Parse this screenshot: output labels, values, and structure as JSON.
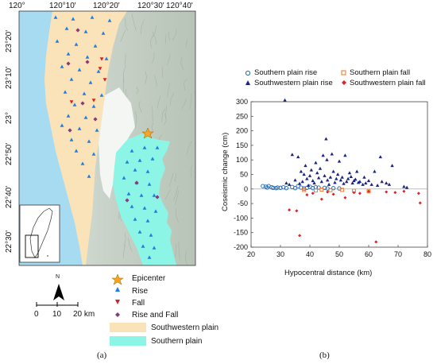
{
  "panel_a": {
    "label": "(a)",
    "top_ticks": [
      "120°",
      "120°10'",
      "120°20'",
      "120°30'",
      "120°40'"
    ],
    "left_ticks": [
      "23°20'",
      "23°10'",
      "23°",
      "22°50'",
      "22°40'",
      "22°30'"
    ],
    "north_label": "N",
    "scale_labels": [
      "0",
      "10",
      "20 km"
    ],
    "legend": [
      {
        "label": "Epicenter",
        "symbol": "star",
        "color": "#f5a623"
      },
      {
        "label": "Rise",
        "symbol": "triangle-up",
        "color": "#1e7fe0"
      },
      {
        "label": "Fall",
        "symbol": "triangle-down",
        "color": "#d42020"
      },
      {
        "label": "Rise and Fall",
        "symbol": "diamond",
        "color": "#8a3a7a"
      },
      {
        "label": "Southwestern plain",
        "symbol": "patch",
        "color": "#fae3b8"
      },
      {
        "label": "Southern plain",
        "symbol": "patch",
        "color": "#8cf5e6"
      }
    ],
    "colors": {
      "sea": "#a7dbf2",
      "southwestern_plain": "#fae3b8",
      "southern_plain": "#8cf5e6",
      "mountain": "#cfd8cf"
    }
  },
  "panel_b": {
    "label": "(b)",
    "legend": [
      {
        "label": "Southern plain rise",
        "color": "#2266aa",
        "symbol": "open-circle"
      },
      {
        "label": "Southern plain fall",
        "color": "#f07020",
        "symbol": "open-square"
      },
      {
        "label": "Southwestern plain rise",
        "color": "#1a237e",
        "symbol": "triangle"
      },
      {
        "label": "Southwestern plain fall",
        "color": "#dd2222",
        "symbol": "diamond"
      }
    ]
  },
  "chart_data": {
    "type": "scatter",
    "xlabel": "Hypocentral distance (km)",
    "ylabel": "Coseismic change (cm)",
    "xlim": [
      20,
      80
    ],
    "ylim": [
      -200,
      300
    ],
    "xticks": [
      20,
      30,
      40,
      50,
      60,
      70,
      80
    ],
    "yticks": [
      -200,
      -150,
      -100,
      -50,
      0,
      50,
      100,
      150,
      200,
      250,
      300
    ],
    "grid": false,
    "legend_position": "top",
    "series": [
      {
        "name": "Southern plain rise",
        "color": "#2266aa",
        "marker": "open-circle",
        "points": [
          [
            24,
            10
          ],
          [
            25,
            8
          ],
          [
            25.5,
            5
          ],
          [
            26,
            10
          ],
          [
            27,
            6
          ],
          [
            27.5,
            4
          ],
          [
            28.5,
            3
          ],
          [
            29,
            5
          ],
          [
            30,
            4
          ],
          [
            31,
            6
          ],
          [
            32,
            3
          ],
          [
            34,
            7
          ],
          [
            35,
            3
          ],
          [
            36,
            10
          ],
          [
            37,
            5
          ],
          [
            38,
            2
          ],
          [
            39,
            4
          ],
          [
            40,
            8
          ],
          [
            41,
            3
          ],
          [
            42,
            6
          ],
          [
            43,
            5
          ],
          [
            45,
            4
          ],
          [
            46,
            2
          ],
          [
            48,
            3
          ],
          [
            50,
            2
          ]
        ]
      },
      {
        "name": "Southern plain fall",
        "color": "#f07020",
        "marker": "open-square",
        "points": [
          [
            38,
            -3
          ],
          [
            42,
            -5
          ],
          [
            44,
            -2
          ],
          [
            47,
            -4
          ],
          [
            51,
            -3
          ],
          [
            55,
            -6
          ],
          [
            60,
            -8
          ]
        ]
      },
      {
        "name": "Southwestern plain rise",
        "color": "#1a237e",
        "marker": "triangle",
        "points": [
          [
            31.5,
            305
          ],
          [
            32,
            20
          ],
          [
            33,
            15
          ],
          [
            34,
            118
          ],
          [
            35,
            30
          ],
          [
            36,
            110
          ],
          [
            36.5,
            18
          ],
          [
            37,
            60
          ],
          [
            37.5,
            25
          ],
          [
            38,
            50
          ],
          [
            38.5,
            80
          ],
          [
            39,
            35
          ],
          [
            39.5,
            12
          ],
          [
            40,
            45
          ],
          [
            40.5,
            65
          ],
          [
            41,
            28
          ],
          [
            41.5,
            20
          ],
          [
            42,
            90
          ],
          [
            42.5,
            55
          ],
          [
            43,
            38
          ],
          [
            43.5,
            70
          ],
          [
            44,
            25
          ],
          [
            44.5,
            115
          ],
          [
            45,
            45
          ],
          [
            45.5,
            172
          ],
          [
            45.8,
            100
          ],
          [
            46,
            30
          ],
          [
            46.5,
            15
          ],
          [
            47,
            40
          ],
          [
            47.5,
            120
          ],
          [
            48,
            60
          ],
          [
            48.5,
            22
          ],
          [
            49,
            35
          ],
          [
            49.5,
            50
          ],
          [
            50,
            95
          ],
          [
            50.5,
            30
          ],
          [
            51,
            40
          ],
          [
            51.5,
            18
          ],
          [
            52,
            115
          ],
          [
            52.5,
            25
          ],
          [
            53,
            35
          ],
          [
            53.5,
            55
          ],
          [
            54,
            42
          ],
          [
            54.5,
            20
          ],
          [
            55,
            28
          ],
          [
            55.5,
            33
          ],
          [
            56,
            60
          ],
          [
            56.5,
            22
          ],
          [
            57,
            25
          ],
          [
            58,
            15
          ],
          [
            58.5,
            40
          ],
          [
            59,
            20
          ],
          [
            60,
            28
          ],
          [
            61,
            15
          ],
          [
            62,
            60
          ],
          [
            63,
            12
          ],
          [
            64,
            110
          ],
          [
            64.5,
            25
          ],
          [
            66,
            20
          ],
          [
            67,
            15
          ],
          [
            68,
            80
          ],
          [
            72,
            8
          ],
          [
            73,
            5
          ]
        ]
      },
      {
        "name": "Southwestern plain fall",
        "color": "#dd2222",
        "marker": "diamond",
        "points": [
          [
            33,
            -72
          ],
          [
            35.5,
            -75
          ],
          [
            36.5,
            -160
          ],
          [
            39,
            -20
          ],
          [
            41,
            -15
          ],
          [
            44,
            -35
          ],
          [
            46,
            -10
          ],
          [
            48,
            -18
          ],
          [
            52,
            -30
          ],
          [
            55,
            -12
          ],
          [
            57,
            -15
          ],
          [
            60,
            -8
          ],
          [
            62.5,
            -182
          ],
          [
            66,
            -10
          ],
          [
            69,
            -12
          ],
          [
            72,
            -8
          ],
          [
            77,
            -15
          ],
          [
            77.5,
            -48
          ]
        ]
      }
    ]
  }
}
